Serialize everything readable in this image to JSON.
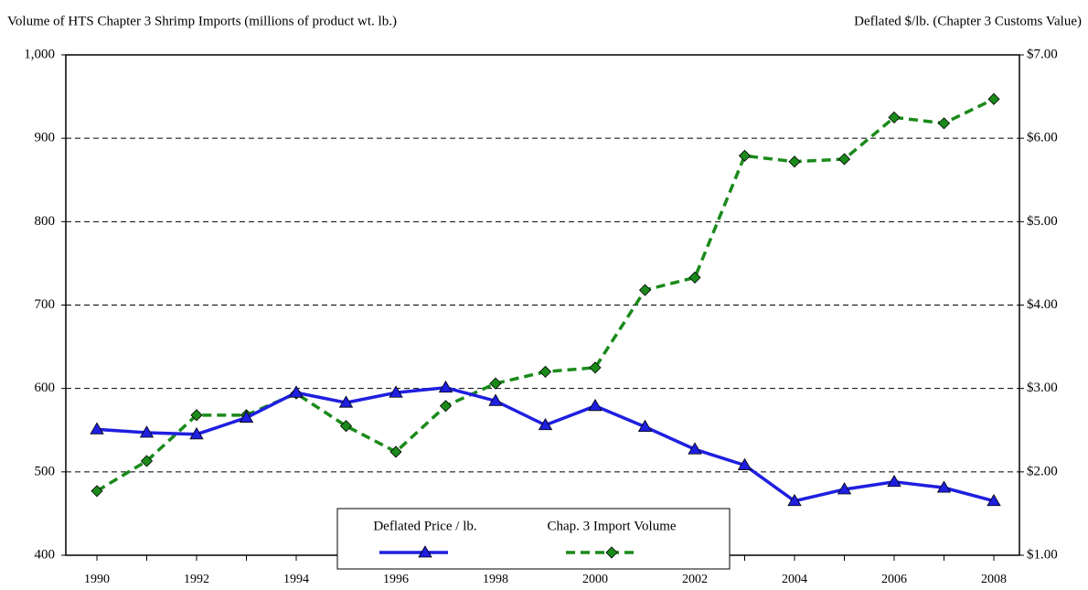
{
  "chart_data": {
    "type": "line",
    "y_label": "Volume of HTS Chapter 3 Shrimp Imports (millions of product wt. lb.)",
    "y2_label": "Deflated $/lb. (Chapter 3 Customs Value)",
    "x": [
      1990,
      1991,
      1992,
      1993,
      1994,
      1995,
      1996,
      1997,
      1998,
      1999,
      2000,
      2001,
      2002,
      2003,
      2004,
      2005,
      2006,
      2007,
      2008
    ],
    "xlim": [
      1990,
      2008
    ],
    "xticks": [
      1990,
      1992,
      1994,
      1996,
      1998,
      2000,
      2002,
      2004,
      2006,
      2008
    ],
    "ylim": [
      400,
      1000
    ],
    "yticks": [
      400,
      500,
      600,
      700,
      800,
      900,
      {
        "value": 1000,
        "label": "1,000"
      }
    ],
    "y2lim": [
      1,
      7
    ],
    "y2ticks": [
      {
        "value": 1,
        "label": "$1.00"
      },
      {
        "value": 2,
        "label": "$2.00"
      },
      {
        "value": 3,
        "label": "$3.00"
      },
      {
        "value": 4,
        "label": "$4.00"
      },
      {
        "value": 5,
        "label": "$5.00"
      },
      {
        "value": 6,
        "label": "$6.00"
      },
      {
        "value": 7,
        "label": "$7.00"
      }
    ],
    "grid": true,
    "legend": "bottom",
    "series": [
      {
        "name": "Deflated Price / lb.",
        "color": "#1f1fe0",
        "axis": "y2",
        "marker": "triangle",
        "dashed": false,
        "values": [
          2.51,
          2.47,
          2.45,
          2.65,
          2.95,
          2.83,
          2.95,
          3.01,
          2.85,
          2.56,
          2.79,
          2.54,
          2.27,
          2.08,
          1.65,
          1.79,
          1.88,
          1.81,
          1.65
        ]
      },
      {
        "name": "Chap. 3 Import Volume",
        "color": "#1a8a1a",
        "axis": "y",
        "marker": "diamond",
        "dashed": true,
        "values": [
          477,
          513,
          568,
          568,
          594,
          555,
          524,
          579,
          606,
          620,
          625,
          718,
          733,
          879,
          872,
          875,
          925,
          918,
          947
        ]
      }
    ]
  }
}
